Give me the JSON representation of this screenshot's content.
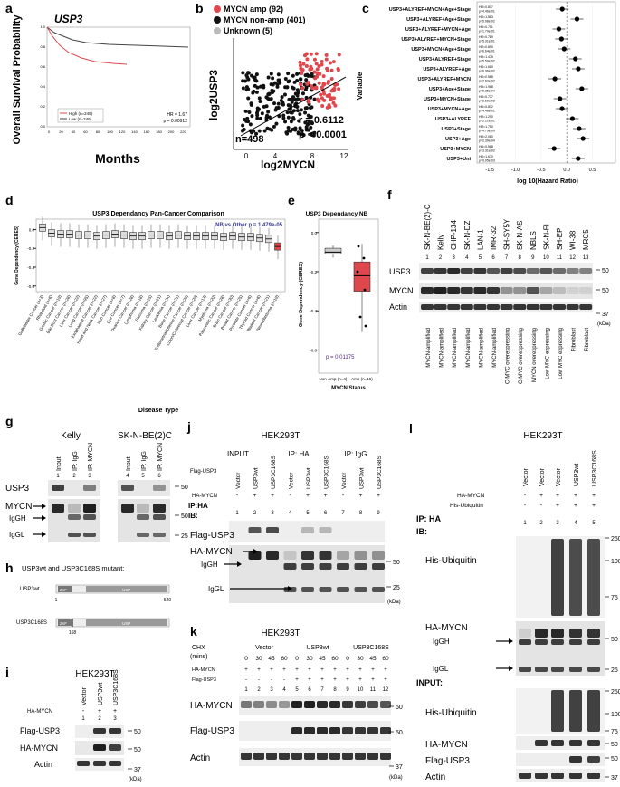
{
  "a": {
    "label": "a",
    "title": "USP3",
    "y_label": "Overall Survival Probability",
    "x_label": "Months",
    "y_ticks": [
      "0.0",
      "0.2",
      "0.4",
      "0.6",
      "0.8",
      "1.0"
    ],
    "x_ticks": [
      "0",
      "20",
      "40",
      "60",
      "80",
      "100",
      "120",
      "140",
      "160",
      "180",
      "200",
      "220"
    ],
    "legend": [
      "High (n=249)",
      "Low (n=249)"
    ],
    "hr": "HR = 1.67",
    "p": "p = 0.00912"
  },
  "b": {
    "label": "b",
    "legend": [
      "MYCN amp (92)",
      "MYCN non-amp (401)",
      "Unknown (5)"
    ],
    "y_label": "log2USP3",
    "x_label": "log2MYCN",
    "x_ticks": [
      "0",
      "4",
      "8",
      "12"
    ],
    "r": "r = 0.6112",
    "p": "p < 0.0001",
    "n": "n=498"
  },
  "c": {
    "label": "c",
    "y_label": "Variable",
    "x_label": "log 10(Hazard Ratio)",
    "xlim": [
      -1.75,
      0.95
    ],
    "x_ticks": [
      -1.5,
      {
        "value": -1,
        "label": "-1.0"
      },
      -0.5,
      {
        "value": 0,
        "label": "0.0"
      },
      0.5
    ],
    "rows": [
      {
        "name": "USP3+ALYREF+MYCN+Age+Stage",
        "hr": 0.817,
        "hr_label": "HR=0.817",
        "p_label": "p=4.46e-01"
      },
      {
        "name": "USP3+ALYREF+Age+Stage",
        "hr": 1.583,
        "hr_label": "HR=1.583",
        "p_label": "p=5.08e-02"
      },
      {
        "name": "USP3+ALYREF+MYCN+Age",
        "hr": 0.701,
        "hr_label": "HR=0.701",
        "p_label": "p=1.79e-01"
      },
      {
        "name": "USP3+ALYREF+MYCN+Stage",
        "hr": 0.789,
        "hr_label": "HR=0.789",
        "p_label": "p=5.31e-01"
      },
      {
        "name": "USP3+MYCN+Age+Stage",
        "hr": 0.89,
        "hr_label": "HR=0.890",
        "p_label": "p=6.64e-01"
      },
      {
        "name": "USP3+ALYREF+Stage",
        "hr": 1.475,
        "hr_label": "HR=1.475",
        "p_label": "p=5.59e-02"
      },
      {
        "name": "USP3+ALYREF+Age",
        "hr": 1.68,
        "hr_label": "HR=1.680",
        "p_label": "p=6.96e-02"
      },
      {
        "name": "USP3+ALYREF+MYCN",
        "hr": 0.588,
        "hr_label": "HR=0.588",
        "p_label": "p=2.62e-02"
      },
      {
        "name": "USP3+Age+Stage",
        "hr": 1.968,
        "hr_label": "HR=1.968",
        "p_label": "p=8.25e-04"
      },
      {
        "name": "USP3+MYCN+Stage",
        "hr": 0.737,
        "hr_label": "HR=0.737",
        "p_label": "p=2.69e-02"
      },
      {
        "name": "USP3+MYCN+Age",
        "hr": 0.812,
        "hr_label": "HR=0.812",
        "p_label": "p=4.48e-01"
      },
      {
        "name": "USP3+ALYREF",
        "hr": 1.29,
        "hr_label": "HR=1.290",
        "p_label": "p=2.21e-01"
      },
      {
        "name": "USP3+Stage",
        "hr": 1.75,
        "hr_label": "HR=1.750",
        "p_label": "p=4.79e-09"
      },
      {
        "name": "USP3+Age",
        "hr": 2.08,
        "hr_label": "HR=2.080",
        "p_label": "p=2.39e-04"
      },
      {
        "name": "USP3+MYCN",
        "hr": 0.568,
        "hr_label": "HR=0.568",
        "p_label": "p=3.31e-02"
      },
      {
        "name": "USP3+Uni",
        "hr": 1.67,
        "hr_label": "HR=1.670",
        "p_label": "p=9.05e-03"
      }
    ]
  },
  "d": {
    "label": "d",
    "title": "USP3 Dependancy Pan-Cancer Comparison",
    "stat": "NB vs Other p = 1.479e-05",
    "y_label": "Gene Dependency (CERES)",
    "x_label": "Disease Type",
    "ylim": [
      -0.65,
      0.1
    ],
    "y_ticks": [
      {
        "value": 0,
        "label": "0.0"
      },
      -0.2,
      -0.4,
      -0.6
    ],
    "categories": [
      "Gallbladder Cancer (n=3)",
      "Rhabdoid (n=6)",
      "Gastric Cancer (n=19)",
      "Bile Duct Cancer (n=28)",
      "Liver Cancer (n=22)",
      "Lung Cancer (n=95)",
      "Esophageal Cancer (n=22)",
      "Head and Neck Cancer (n=27)",
      "Skin Cancer (n=8)",
      "Eye Cancer (n=7)",
      "Ovarian Cancer (n=28)",
      "Lymphoma (n=18)",
      "Sarcoma (n=15)",
      "Kidney Cancer (n=21)",
      "Leukemia (n=24)",
      "Bone Cancer (n=21)",
      "Endometrial/Uterine Cancer (n=20)",
      "Colon/Colorectal Cancer (n=29)",
      "Liver Cancer (n=13)",
      "Myeloma (n=20)",
      "Pancreatic Cancer (n=28)",
      "Brain Cancer (n=30)",
      "Breast Cancer (n=25)",
      "Prostate Cancer (n=6)",
      "Thyroid Cancer (n=6)",
      "Bladder Cancer (n=21)",
      "Neuroblastoma (n=19)"
    ],
    "medians": [
      0.02,
      -0.04,
      -0.05,
      -0.05,
      -0.06,
      -0.06,
      -0.07,
      -0.06,
      -0.05,
      -0.06,
      -0.07,
      -0.07,
      -0.06,
      -0.06,
      -0.07,
      -0.06,
      -0.07,
      -0.07,
      -0.07,
      -0.07,
      -0.08,
      -0.07,
      -0.08,
      -0.08,
      -0.09,
      -0.1,
      -0.18
    ]
  },
  "e": {
    "label": "e",
    "title": "USP3 Dependancy NB",
    "p": "p = 0.01175",
    "y_label": "Gene Dependency (CERES)",
    "x_label": "MYCN Status",
    "categories": [
      "Non-Amp (n=4)",
      "Amp (n=15)"
    ],
    "ylim": [
      -0.7,
      0.05
    ],
    "y_ticks": [
      {
        "value": 0,
        "label": "0.0"
      },
      -0.2,
      -0.4,
      -0.6
    ],
    "q1": [
      -0.11,
      -0.3
    ],
    "medians": [
      -0.1,
      -0.22
    ],
    "q3": [
      -0.08,
      -0.15
    ]
  },
  "f": {
    "label": "f",
    "cell_lines": [
      "SK-N-BE(2)-C",
      "Kelly",
      "CHP-134",
      "SK-N-DZ",
      "LAN-1",
      "IMR-32",
      "SH-SY5Y",
      "SK-N-AS",
      "NBLS",
      "SK-N-FI",
      "SH-EP",
      "WI-38",
      "MRC5"
    ],
    "lanes": [
      "1",
      "2",
      "3",
      "4",
      "5",
      "6",
      "7",
      "8",
      "9",
      "10",
      "11",
      "12",
      "13"
    ],
    "rows": [
      "USP3",
      "MYCN",
      "Actin"
    ],
    "markers": [
      "50",
      "50",
      "37"
    ],
    "unit": "(kDa)",
    "status": [
      "MYCN-amplified",
      "MYCN-amplified",
      "MYCN-amplified",
      "MYCN-amplified",
      "MYCN-amplified",
      "MYCN-amplified",
      "C-MYC overexpressing",
      "C-MYC overexpressing",
      "MYCN overexpressing",
      "Low MYC expressing",
      "Low MYC expressing",
      "Fibroblast",
      "Fibroblast"
    ]
  },
  "g": {
    "label": "g",
    "groups": [
      "Kelly",
      "SK-N-BE(2)C"
    ],
    "lanes": [
      "Input",
      "IP: IgG",
      "IP: MYCN",
      "Input",
      "IP: IgG",
      "IP: MYCN"
    ],
    "numbers": [
      "1",
      "2",
      "3",
      "4",
      "5",
      "6"
    ],
    "rows": [
      "USP3",
      "MYCN",
      "IgGH",
      "IgGL"
    ],
    "markers": [
      "50",
      "50",
      "25"
    ]
  },
  "h": {
    "label": "h",
    "title": "USP3wt and USP3C168S mutant:",
    "constructs": [
      "USP3wt",
      "USP3C168S"
    ],
    "domains": [
      "ZnF",
      "USP"
    ],
    "start": "1",
    "end": "520",
    "site": "168"
  },
  "i": {
    "label": "i",
    "cell": "HEK293T",
    "lanes": [
      "Vector",
      "USP3wt",
      "USP3C168S"
    ],
    "row_label": "HA-MYCN",
    "signs": [
      "-",
      "+",
      "+"
    ],
    "numbers": [
      "1",
      "2",
      "3"
    ],
    "rows": [
      "Flag-USP3",
      "HA-MYCN",
      "Actin"
    ],
    "markers": [
      "50",
      "50",
      "37"
    ],
    "unit": "(kDa)"
  },
  "j": {
    "label": "j",
    "cell": "HEK293T",
    "groups": [
      "INPUT",
      "IP: HA",
      "IP: IgG"
    ],
    "lanes": [
      "Vector",
      "USP3wt",
      "USP3C168S",
      "Vector",
      "USP3wt",
      "USP3C168S",
      "Vector",
      "USP3wt",
      "USP3C168S"
    ],
    "flag_label": "Flag-USP3",
    "ha_label": "HA-MYCN",
    "ha_signs": [
      "-",
      "+",
      "+",
      "-",
      "+",
      "+",
      "-",
      "+",
      "+"
    ],
    "ip": "IP:HA",
    "ib": "IB:",
    "numbers": [
      "1",
      "2",
      "3",
      "4",
      "5",
      "6",
      "7",
      "8",
      "9"
    ],
    "rows": [
      "Flag-USP3",
      "HA-MYCN",
      "IgGH",
      "IgGL"
    ],
    "markers": [
      "50",
      "25"
    ],
    "unit": "(kDa)"
  },
  "k": {
    "label": "k",
    "cell": "HEK293T",
    "chx": "CHX",
    "mins": "(mins)",
    "groups": [
      "Vector",
      "USP3wt",
      "USP3C168S"
    ],
    "times": [
      "0",
      "30",
      "45",
      "60",
      "0",
      "30",
      "45",
      "60",
      "0",
      "30",
      "45",
      "60"
    ],
    "ha_label": "HA-MYCN",
    "ha_signs": [
      "+",
      "+",
      "+",
      "+",
      "+",
      "+",
      "+",
      "+",
      "+",
      "+",
      "+",
      "+"
    ],
    "flag_label": "Flag-USP3",
    "flag_signs": [
      "-",
      "-",
      "-",
      "-",
      "+",
      "+",
      "+",
      "+",
      "+",
      "+",
      "+",
      "+"
    ],
    "numbers": [
      "1",
      "2",
      "3",
      "4",
      "5",
      "6",
      "7",
      "8",
      "9",
      "10",
      "11",
      "12"
    ],
    "rows": [
      "HA-MYCN",
      "Flag-USP3",
      "Actin"
    ],
    "markers": [
      "50",
      "50",
      "37"
    ],
    "unit": "(kDa)"
  },
  "l": {
    "label": "l",
    "cell": "HEK293T",
    "lanes": [
      "Vector",
      "Vector",
      "Vector",
      "USP3wt",
      "USP3C168S"
    ],
    "ha_label": "HA-MYCN",
    "ha_signs": [
      "-",
      "+",
      "+",
      "+",
      "+"
    ],
    "ub_label": "His-Ubiquitin",
    "ub_signs": [
      "-",
      "-",
      "+",
      "+",
      "+"
    ],
    "ip": "IP: HA",
    "ib": "IB:",
    "numbers": [
      "1",
      "2",
      "3",
      "4",
      "5"
    ],
    "ip_rows": [
      "His-Ubiquitin",
      "HA-MYCN",
      "IgGH",
      "IgGL"
    ],
    "ip_markers": [
      "250",
      "100",
      "75",
      "50",
      "25"
    ],
    "input": "INPUT:",
    "input_rows": [
      "His-Ubiquitin",
      "HA-MYCN",
      "Flag-USP3",
      "Actin"
    ],
    "input_markers": [
      "250",
      "100",
      "75",
      "50",
      "50",
      "37"
    ]
  }
}
